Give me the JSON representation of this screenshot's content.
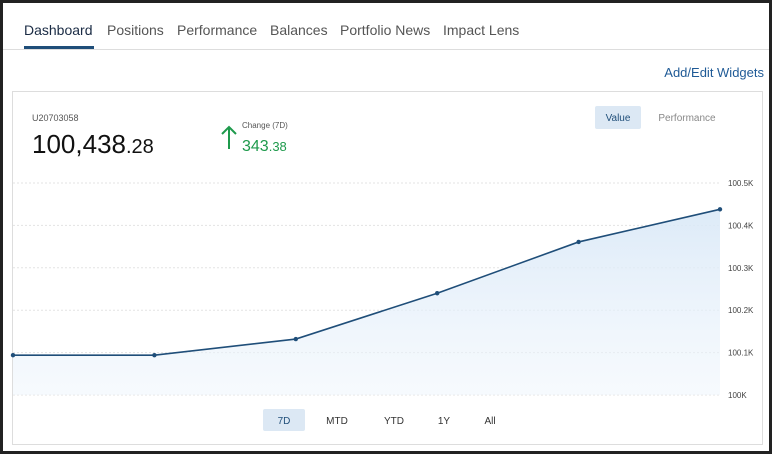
{
  "nav": {
    "tabs": [
      "Dashboard",
      "Positions",
      "Performance",
      "Balances",
      "Portfolio News",
      "Impact Lens"
    ],
    "active": "Dashboard"
  },
  "widgets_link": "Add/Edit Widgets",
  "account": {
    "id": "U20703058",
    "value_main": "100,438",
    "value_cents": ".28",
    "change_label": "Change (7D)",
    "change_main": "343",
    "change_cents": ".38"
  },
  "view_toggle": [
    "Value",
    "Performance"
  ],
  "ranges": [
    "7D",
    "MTD",
    "YTD",
    "1Y",
    "All"
  ],
  "chart_data": {
    "type": "line",
    "categories": [
      null,
      null,
      null,
      null,
      null,
      null
    ],
    "values": [
      100094,
      100094,
      100132,
      100240,
      100361,
      100438
    ],
    "color": "#1f4e79",
    "ylim": [
      100000,
      100500
    ],
    "yticks": [
      {
        "value": 100000,
        "label": "100K"
      },
      {
        "value": 100100,
        "label": "100.1K"
      },
      {
        "value": 100200,
        "label": "100.2K"
      },
      {
        "value": 100300,
        "label": "100.3K"
      },
      {
        "value": 100400,
        "label": "100.4K"
      },
      {
        "value": 100500,
        "label": "100.5K"
      }
    ],
    "grid": true
  }
}
